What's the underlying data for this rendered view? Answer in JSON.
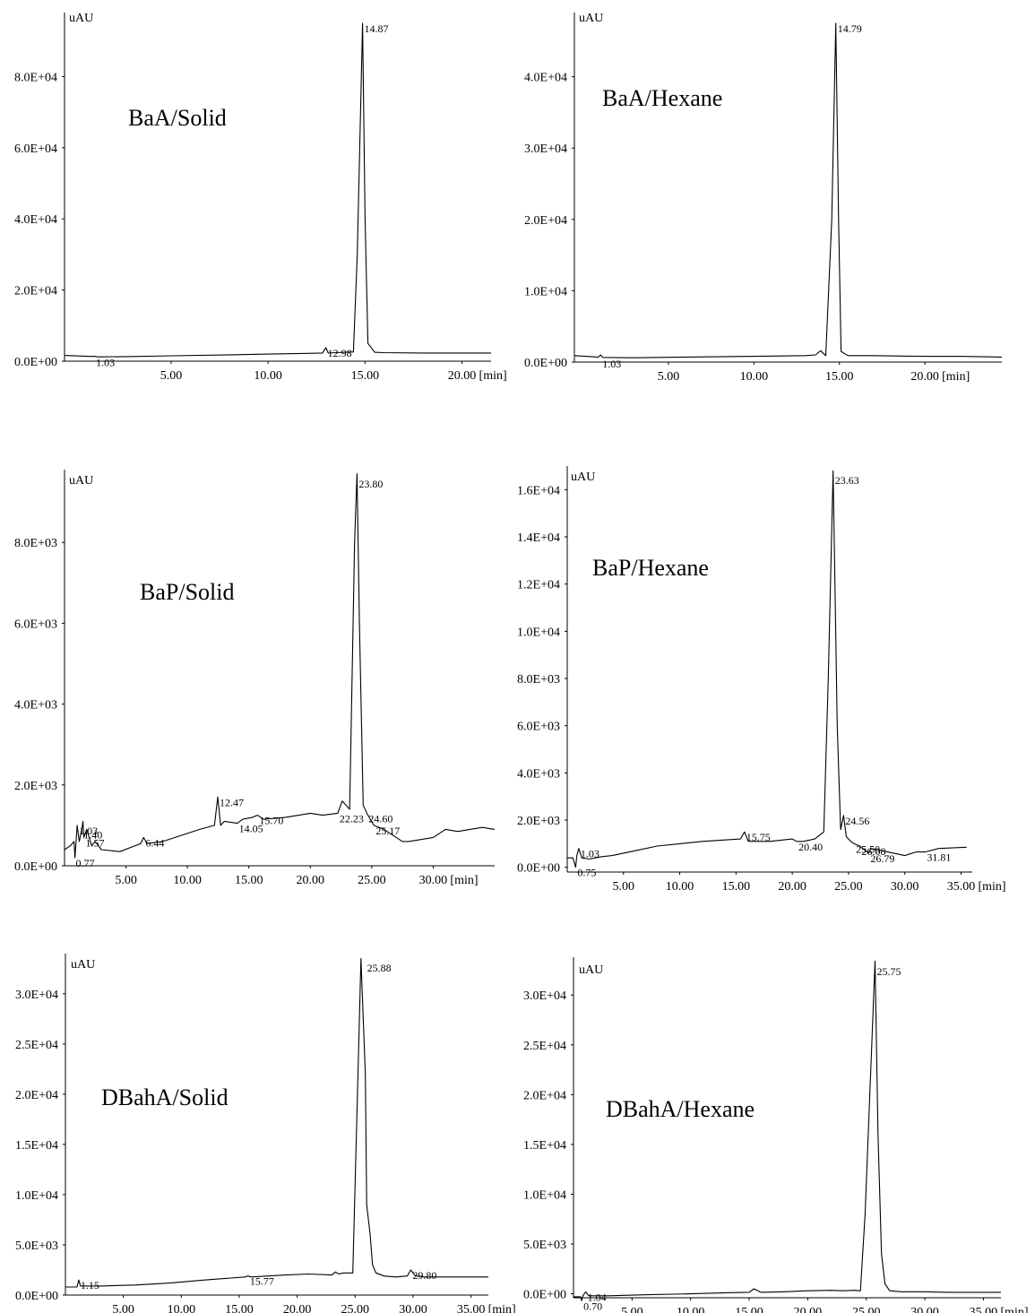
{
  "chart_data": [
    {
      "id": "baa-solid",
      "type": "line",
      "title": "BaA/Solid",
      "ylabel": "uAU",
      "xunit": "[min]",
      "xlim": [
        -0.5,
        21.5
      ],
      "ylim": [
        0,
        98000
      ],
      "xticks": [
        5,
        10,
        15,
        20
      ],
      "xtick_labels": [
        "5.00",
        "10.00",
        "15.00",
        "20.00"
      ],
      "yticks": [
        0,
        20000,
        40000,
        60000,
        80000
      ],
      "ytick_labels": [
        "0.0E+00",
        "2.0E+04",
        "4.0E+04",
        "6.0E+04",
        "8.0E+04"
      ],
      "series": [
        {
          "x": [
            -0.5,
            1.0,
            1.03,
            1.08,
            1.2,
            3,
            5,
            8,
            10,
            12,
            12.8,
            12.98,
            13.1,
            13.5,
            14.4,
            14.6,
            14.87,
            15.0,
            15.15,
            15.5,
            16,
            18,
            21.5
          ],
          "y": [
            1600,
            1300,
            1450,
            1300,
            1200,
            1300,
            1500,
            1800,
            2000,
            2200,
            2300,
            3800,
            2300,
            2400,
            2600,
            30000,
            95000,
            40000,
            5000,
            2500,
            2400,
            2300,
            2300
          ]
        }
      ],
      "peak_labels": [
        {
          "x": 1.03,
          "label": "1.03",
          "y": 1100
        },
        {
          "x": 12.98,
          "label": "12.98",
          "y": 3800
        },
        {
          "x": 14.87,
          "label": "14.87",
          "y": 95000
        }
      ]
    },
    {
      "id": "baa-hexane",
      "type": "line",
      "title": "BaA/Hexane",
      "ylabel": "uAU",
      "xunit": "[min]",
      "xlim": [
        -0.5,
        24.5
      ],
      "ylim": [
        0,
        49000
      ],
      "xticks": [
        5,
        10,
        15,
        20
      ],
      "xtick_labels": [
        "5.00",
        "10.00",
        "15.00",
        "20.00"
      ],
      "yticks": [
        0,
        10000,
        20000,
        30000,
        40000
      ],
      "ytick_labels": [
        "0.0E+00",
        "1.0E+04",
        "2.0E+04",
        "3.0E+04",
        "4.0E+04"
      ],
      "series": [
        {
          "x": [
            -0.5,
            0.9,
            1.03,
            1.15,
            3,
            6,
            10,
            13,
            13.6,
            13.9,
            14.2,
            14.55,
            14.79,
            14.95,
            15.1,
            15.5,
            17,
            20,
            22,
            24.5
          ],
          "y": [
            900,
            700,
            1000,
            650,
            600,
            700,
            800,
            900,
            1000,
            1600,
            900,
            20000,
            47500,
            20000,
            1500,
            900,
            900,
            800,
            800,
            700
          ]
        }
      ],
      "peak_labels": [
        {
          "x": 1.03,
          "label": "1.03",
          "y": 500
        },
        {
          "x": 14.79,
          "label": "14.79",
          "y": 47500
        }
      ]
    },
    {
      "id": "bap-solid",
      "type": "line",
      "title": "BaP/Solid",
      "ylabel": "uAU",
      "xunit": "[min]",
      "xlim": [
        0,
        35
      ],
      "ylim": [
        0,
        9800
      ],
      "xticks": [
        5,
        10,
        15,
        20,
        25,
        30
      ],
      "xtick_labels": [
        "5.00",
        "10.00",
        "15.00",
        "20.00",
        "25.00",
        "30.00"
      ],
      "yticks": [
        0,
        2000,
        4000,
        6000,
        8000
      ],
      "ytick_labels": [
        "0.0E+00",
        "2.0E+03",
        "4.0E+03",
        "6.0E+03",
        "8.0E+03"
      ],
      "series": [
        {
          "x": [
            0,
            0.5,
            0.77,
            0.85,
            1.03,
            1.2,
            1.4,
            1.5,
            1.57,
            1.8,
            2.2,
            2.5,
            3,
            4.5,
            5.8,
            6.2,
            6.44,
            6.7,
            8,
            10,
            11,
            12.2,
            12.47,
            12.7,
            13,
            14.05,
            14.5,
            15.3,
            15.7,
            16.2,
            18,
            20,
            21,
            22.23,
            22.6,
            23.2,
            23.6,
            23.8,
            24.0,
            24.3,
            24.6,
            25.17,
            26,
            26.5,
            27.5,
            28,
            29,
            30,
            30.5,
            31,
            32,
            33,
            34,
            35
          ],
          "y": [
            400,
            500,
            600,
            200,
            1000,
            600,
            900,
            1100,
            700,
            900,
            500,
            600,
            400,
            350,
            500,
            550,
            700,
            550,
            600,
            800,
            900,
            1000,
            1700,
            1000,
            1100,
            1050,
            1150,
            1200,
            1250,
            1150,
            1200,
            1300,
            1250,
            1300,
            1600,
            1400,
            8000,
            9700,
            6000,
            1500,
            1300,
            1000,
            900,
            800,
            600,
            600,
            650,
            700,
            800,
            900,
            850,
            900,
            950,
            900
          ]
        }
      ],
      "peak_labels": [
        {
          "x": 0.77,
          "label": "0.77",
          "y": 200
        },
        {
          "x": 1.03,
          "label": "1.03",
          "y": 1000
        },
        {
          "x": 1.4,
          "label": "1.40",
          "y": 900
        },
        {
          "x": 1.57,
          "label": "1.57",
          "y": 700
        },
        {
          "x": 6.44,
          "label": "6.44",
          "y": 700
        },
        {
          "x": 12.47,
          "label": "12.47",
          "y": 1700
        },
        {
          "x": 14.05,
          "label": "14.05",
          "y": 1050
        },
        {
          "x": 15.7,
          "label": "15.70",
          "y": 1250
        },
        {
          "x": 22.23,
          "label": "22.23",
          "y": 1300
        },
        {
          "x": 23.8,
          "label": "23.80",
          "y": 9700
        },
        {
          "x": 24.6,
          "label": "24.60",
          "y": 1300
        },
        {
          "x": 25.17,
          "label": "25.17",
          "y": 1000
        }
      ]
    },
    {
      "id": "bap-hexane",
      "type": "line",
      "title": "BaP/Hexane",
      "ylabel": "uAU",
      "xunit": "[min]",
      "xlim": [
        0,
        36
      ],
      "ylim": [
        -200,
        17000
      ],
      "xticks": [
        5,
        10,
        15,
        20,
        25,
        30,
        35
      ],
      "xtick_labels": [
        "5.00",
        "10.00",
        "15.00",
        "20.00",
        "25.00",
        "30.00",
        "35.00"
      ],
      "yticks": [
        0,
        2000,
        4000,
        6000,
        8000,
        10000,
        12000,
        14000,
        16000
      ],
      "ytick_labels": [
        "0.0E+00",
        "2.0E+03",
        "4.0E+03",
        "6.0E+03",
        "8.0E+03",
        "1.0E+04",
        "1.2E+04",
        "1.4E+04",
        "1.6E+04"
      ],
      "series": [
        {
          "x": [
            0,
            0.5,
            0.75,
            0.85,
            1.03,
            1.3,
            2,
            3,
            4,
            6,
            8,
            10,
            12,
            15.4,
            15.75,
            16.1,
            18,
            20,
            20.4,
            21,
            22,
            22.8,
            23.2,
            23.63,
            24.0,
            24.3,
            24.56,
            24.8,
            25.2,
            25.5,
            26,
            26.5,
            26.79,
            27,
            28,
            29,
            30,
            31,
            31.81,
            33,
            35.5
          ],
          "y": [
            400,
            400,
            0,
            500,
            800,
            400,
            350,
            450,
            500,
            700,
            900,
            1000,
            1100,
            1200,
            1500,
            1100,
            1100,
            1200,
            1100,
            1100,
            1200,
            1500,
            8000,
            16800,
            6000,
            1600,
            2200,
            1300,
            1100,
            1000,
            900,
            700,
            600,
            800,
            700,
            600,
            500,
            650,
            650,
            800,
            850
          ]
        }
      ],
      "peak_labels": [
        {
          "x": 0.75,
          "label": "0.75",
          "y": 0
        },
        {
          "x": 1.03,
          "label": "1.03",
          "y": 800
        },
        {
          "x": 15.75,
          "label": "15.75",
          "y": 1500
        },
        {
          "x": 20.4,
          "label": "20.40",
          "y": 1100
        },
        {
          "x": 23.63,
          "label": "23.63",
          "y": 16800
        },
        {
          "x": 24.56,
          "label": "24.56",
          "y": 2200
        },
        {
          "x": 25.5,
          "label": "25.50",
          "y": 1000
        },
        {
          "x": 26,
          "label": "26.08",
          "y": 900
        },
        {
          "x": 26.79,
          "label": "26.79",
          "y": 600
        },
        {
          "x": 31.81,
          "label": "31.81",
          "y": 650
        }
      ]
    },
    {
      "id": "dbaha-solid",
      "type": "line",
      "title": "DBahA/Solid",
      "ylabel": "uAU",
      "xunit": "[min]",
      "xlim": [
        0,
        36.5
      ],
      "ylim": [
        0,
        34000
      ],
      "xticks": [
        5,
        10,
        15,
        20,
        25,
        30,
        35
      ],
      "xtick_labels": [
        "5.00",
        "10.00",
        "15.00",
        "20.00",
        "25.00",
        "30.00",
        "35.00"
      ],
      "yticks": [
        0,
        5000,
        10000,
        15000,
        20000,
        25000,
        30000
      ],
      "ytick_labels": [
        "0.0E+00",
        "5.0E+03",
        "1.0E+04",
        "1.5E+04",
        "2.0E+04",
        "2.5E+04",
        "3.0E+04"
      ],
      "series": [
        {
          "x": [
            0,
            1,
            1.15,
            1.3,
            3,
            6,
            9,
            12,
            15.5,
            15.77,
            16,
            19,
            21,
            23,
            23.3,
            23.6,
            24,
            24.8,
            25.2,
            25.5,
            25.88,
            26.0,
            26.3,
            26.5,
            26.8,
            27.5,
            28.5,
            29.5,
            29.8,
            30.2,
            31,
            33,
            36.5
          ],
          "y": [
            800,
            800,
            1500,
            900,
            900,
            1000,
            1200,
            1500,
            1800,
            1900,
            1800,
            2000,
            2100,
            2000,
            2300,
            2100,
            2200,
            2200,
            20000,
            33500,
            22000,
            9000,
            6000,
            3000,
            2200,
            1900,
            1800,
            1900,
            2500,
            1900,
            1800,
            1800,
            1800
          ]
        }
      ],
      "peak_labels": [
        {
          "x": 1.15,
          "label": "1.15",
          "y": 1500
        },
        {
          "x": 15.77,
          "label": "15.77",
          "y": 1900
        },
        {
          "x": 25.88,
          "label": "25.88",
          "y": 33500
        },
        {
          "x": 29.8,
          "label": "29.80",
          "y": 2500
        }
      ]
    },
    {
      "id": "dbaha-hexane",
      "type": "line",
      "title": "DBahA/Hexane",
      "ylabel": "uAU",
      "xunit": "[min]",
      "xlim": [
        0,
        36.5
      ],
      "ylim": [
        -400,
        33800
      ],
      "xticks": [
        5,
        10,
        15,
        20,
        25,
        30,
        35
      ],
      "xtick_labels": [
        "5.00",
        "10.00",
        "15.00",
        "20.00",
        "25.00",
        "30.00",
        "35.00"
      ],
      "yticks": [
        0,
        5000,
        10000,
        15000,
        20000,
        25000,
        30000
      ],
      "ytick_labels": [
        "0.0E+00",
        "5.0E+03",
        "1.0E+04",
        "1.5E+04",
        "2.0E+04",
        "2.5E+04",
        "3.0E+04"
      ],
      "series": [
        {
          "x": [
            0,
            0.6,
            0.7,
            0.8,
            1.04,
            1.3,
            3,
            6,
            10,
            13,
            15,
            15.4,
            16,
            18,
            20,
            22,
            23,
            24,
            24.5,
            24.9,
            25.75,
            26.0,
            26.3,
            26.6,
            27,
            28,
            30,
            32,
            35,
            36.5
          ],
          "y": [
            -300,
            -300,
            -700,
            -200,
            200,
            -200,
            -200,
            -100,
            0,
            100,
            150,
            500,
            150,
            200,
            300,
            350,
            300,
            350,
            300,
            8000,
            33400,
            16000,
            4000,
            1000,
            300,
            200,
            200,
            150,
            150,
            150
          ]
        }
      ],
      "peak_labels": [
        {
          "x": 0.7,
          "label": "0.70",
          "y": -700
        },
        {
          "x": 1.04,
          "label": "1.04",
          "y": 200
        },
        {
          "x": 25.75,
          "label": "25.75",
          "y": 33400
        }
      ]
    }
  ]
}
